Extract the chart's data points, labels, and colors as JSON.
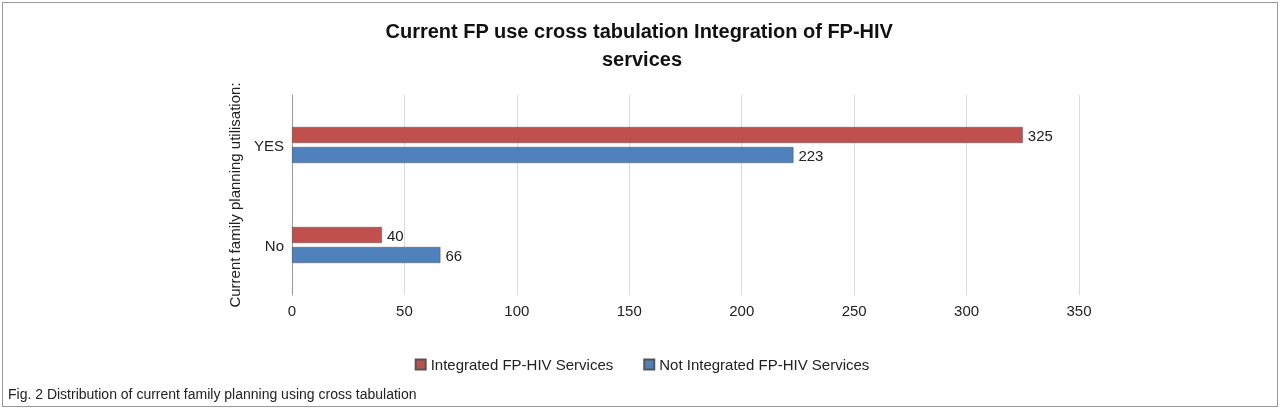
{
  "chart_data": {
    "type": "bar",
    "orientation": "horizontal",
    "title": "Current FP use cross tabulation Integration of FP-HIV services",
    "ylabel": "Current family planning utilisation:",
    "categories": [
      "YES",
      "No"
    ],
    "series": [
      {
        "name": "Integrated FP-HIV Services",
        "color": "#c0504d",
        "values": [
          325,
          40
        ]
      },
      {
        "name": "Not Integrated FP-HIV Services",
        "color": "#4f81bd",
        "values": [
          223,
          66
        ]
      }
    ],
    "xlim": [
      0,
      350
    ],
    "xticks": [
      0,
      50,
      100,
      150,
      200,
      250,
      300,
      350
    ],
    "grid": "x",
    "legend": "bottom",
    "data_labels": true,
    "annotations": [
      "Fig. 2  Distribution of current family planning using cross tabulation"
    ]
  }
}
